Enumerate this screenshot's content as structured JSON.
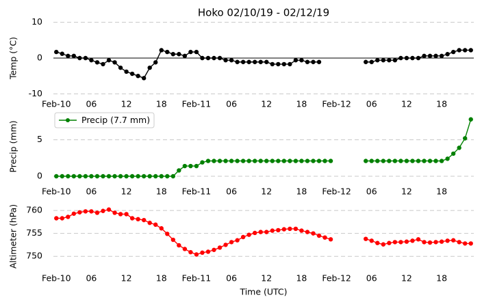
{
  "chart_data": [
    {
      "type": "line",
      "title": "Hoko 02/10/19 - 02/12/19",
      "ylabel": "Temp ($^\\circ$C)",
      "x": [
        0,
        1,
        2,
        3,
        4,
        5,
        6,
        7,
        8,
        9,
        10,
        11,
        12,
        13,
        14,
        15,
        16,
        17,
        18,
        19,
        20,
        21,
        22,
        23,
        24,
        25,
        26,
        27,
        28,
        29,
        30,
        31,
        32,
        33,
        34,
        35,
        36,
        37,
        38,
        39,
        40,
        41,
        42,
        43,
        44,
        45,
        46,
        47,
        48,
        49,
        50,
        51,
        52,
        53,
        54,
        55,
        56,
        57,
        58,
        59,
        60,
        61,
        62,
        63,
        64,
        65,
        66,
        67,
        68,
        69,
        70,
        71
      ],
      "series": [
        {
          "color": "#000000",
          "values": [
            1.7,
            1.2,
            0.6,
            0.6,
            0,
            0,
            -0.6,
            -1.2,
            -1.7,
            -0.6,
            -1.2,
            -2.7,
            -3.8,
            -4.4,
            -5,
            -5.6,
            -2.7,
            -1.2,
            2.2,
            1.7,
            1.1,
            1.1,
            0.6,
            1.7,
            1.7,
            0,
            0,
            0,
            0,
            -0.6,
            -0.6,
            -1.1,
            -1.1,
            -1.1,
            -1.1,
            -1.1,
            -1.1,
            -1.7,
            -1.7,
            -1.7,
            -1.7,
            -0.6,
            -0.6,
            -1.1,
            -1.1,
            -1.1,
            null,
            null,
            null,
            null,
            null,
            null,
            null,
            -1.1,
            -1.1,
            -0.6,
            -0.6,
            -0.6,
            -0.6,
            0,
            0,
            0,
            0,
            0.6,
            0.6,
            0.6,
            0.6,
            1.1,
            1.7,
            2.2,
            2.2,
            2.2
          ]
        }
      ],
      "axhline": 0,
      "xlim": [
        -0.5,
        71.5
      ],
      "ylim": [
        -10.5,
        10.5
      ],
      "yticks": [
        -10,
        0,
        10
      ],
      "xticks": [
        {
          "value": 0,
          "label": "Feb-10"
        },
        {
          "value": 6,
          "label": "06"
        },
        {
          "value": 12,
          "label": "12"
        },
        {
          "value": 18,
          "label": "18"
        },
        {
          "value": 24,
          "label": "Feb-11"
        },
        {
          "value": 30,
          "label": "06"
        },
        {
          "value": 36,
          "label": "12"
        },
        {
          "value": 42,
          "label": "18"
        },
        {
          "value": 48,
          "label": "Feb-12"
        },
        {
          "value": 54,
          "label": "06"
        },
        {
          "value": 60,
          "label": "12"
        },
        {
          "value": 66,
          "label": "18"
        }
      ],
      "grid": true
    },
    {
      "type": "line",
      "ylabel": "Precip (mm)",
      "legend": "upper left",
      "x": [
        0,
        1,
        2,
        3,
        4,
        5,
        6,
        7,
        8,
        9,
        10,
        11,
        12,
        13,
        14,
        15,
        16,
        17,
        18,
        19,
        20,
        21,
        22,
        23,
        24,
        25,
        26,
        27,
        28,
        29,
        30,
        31,
        32,
        33,
        34,
        35,
        36,
        37,
        38,
        39,
        40,
        41,
        42,
        43,
        44,
        45,
        46,
        47,
        48,
        49,
        50,
        51,
        52,
        53,
        54,
        55,
        56,
        57,
        58,
        59,
        60,
        61,
        62,
        63,
        64,
        65,
        66,
        67,
        68,
        69,
        70,
        71
      ],
      "series": [
        {
          "name": "Precip (7.7 mm)",
          "color": "#008000",
          "values": [
            0,
            0,
            0,
            0,
            0,
            0,
            0,
            0,
            0,
            0,
            0,
            0,
            0,
            0,
            0,
            0,
            0,
            0,
            0,
            0,
            0,
            0.8,
            1.4,
            1.4,
            1.4,
            1.9,
            2.1,
            2.1,
            2.1,
            2.1,
            2.1,
            2.1,
            2.1,
            2.1,
            2.1,
            2.1,
            2.1,
            2.1,
            2.1,
            2.1,
            2.1,
            2.1,
            2.1,
            2.1,
            2.1,
            2.1,
            2.1,
            2.1,
            null,
            null,
            null,
            null,
            null,
            2.1,
            2.1,
            2.1,
            2.1,
            2.1,
            2.1,
            2.1,
            2.1,
            2.1,
            2.1,
            2.1,
            2.1,
            2.1,
            2.1,
            2.4,
            3.1,
            3.9,
            5.2,
            7.8
          ]
        }
      ],
      "xlim": [
        -0.5,
        71.5
      ],
      "ylim": [
        -0.75,
        8.9
      ],
      "yticks": [
        0,
        5
      ],
      "xticks": [
        {
          "value": 0,
          "label": "Feb-10"
        },
        {
          "value": 6,
          "label": "06"
        },
        {
          "value": 12,
          "label": "12"
        },
        {
          "value": 18,
          "label": "18"
        },
        {
          "value": 24,
          "label": "Feb-11"
        },
        {
          "value": 30,
          "label": "06"
        },
        {
          "value": 36,
          "label": "12"
        },
        {
          "value": 42,
          "label": "18"
        },
        {
          "value": 48,
          "label": "Feb-12"
        },
        {
          "value": 54,
          "label": "06"
        },
        {
          "value": 60,
          "label": "12"
        },
        {
          "value": 66,
          "label": "18"
        }
      ],
      "grid": true
    },
    {
      "type": "line",
      "ylabel": "Altimeter (hPa)",
      "xlabel": "Time (UTC)",
      "x": [
        0,
        1,
        2,
        3,
        4,
        5,
        6,
        7,
        8,
        9,
        10,
        11,
        12,
        13,
        14,
        15,
        16,
        17,
        18,
        19,
        20,
        21,
        22,
        23,
        24,
        25,
        26,
        27,
        28,
        29,
        30,
        31,
        32,
        33,
        34,
        35,
        36,
        37,
        38,
        39,
        40,
        41,
        42,
        43,
        44,
        45,
        46,
        47,
        48,
        49,
        50,
        51,
        52,
        53,
        54,
        55,
        56,
        57,
        58,
        59,
        60,
        61,
        62,
        63,
        64,
        65,
        66,
        67,
        68,
        69,
        70,
        71
      ],
      "series": [
        {
          "color": "#ff0000",
          "values": [
            758.3,
            758.3,
            758.6,
            759.3,
            759.6,
            759.8,
            759.8,
            759.5,
            759.9,
            760.2,
            759.5,
            759.2,
            759.2,
            758.3,
            758.1,
            757.9,
            757.3,
            756.9,
            756.1,
            754.9,
            753.6,
            752.4,
            751.6,
            750.9,
            750.4,
            750.8,
            751.0,
            751.4,
            751.9,
            752.5,
            753.1,
            753.5,
            754.2,
            754.7,
            755.1,
            755.3,
            755.3,
            755.6,
            755.7,
            755.9,
            756.0,
            756.0,
            755.6,
            755.3,
            755.0,
            754.5,
            754.1,
            753.7,
            null,
            null,
            null,
            null,
            null,
            753.8,
            753.4,
            752.9,
            752.6,
            752.9,
            753.1,
            753.1,
            753.2,
            753.4,
            753.7,
            753.1,
            753.0,
            753.1,
            753.2,
            753.4,
            753.5,
            753.1,
            752.8,
            752.8
          ]
        }
      ],
      "xlim": [
        -0.5,
        71.5
      ],
      "ylim": [
        746.9,
        761.8
      ],
      "yticks": [
        750,
        755,
        760
      ],
      "xticks": [
        {
          "value": 0,
          "label": "Feb-10"
        },
        {
          "value": 6,
          "label": "06"
        },
        {
          "value": 12,
          "label": "12"
        },
        {
          "value": 18,
          "label": "18"
        },
        {
          "value": 24,
          "label": "Feb-11"
        },
        {
          "value": 30,
          "label": "06"
        },
        {
          "value": 36,
          "label": "12"
        },
        {
          "value": 42,
          "label": "18"
        },
        {
          "value": 48,
          "label": "Feb-12"
        },
        {
          "value": 54,
          "label": "06"
        },
        {
          "value": 60,
          "label": "12"
        },
        {
          "value": 66,
          "label": "18"
        }
      ],
      "grid": true
    }
  ]
}
